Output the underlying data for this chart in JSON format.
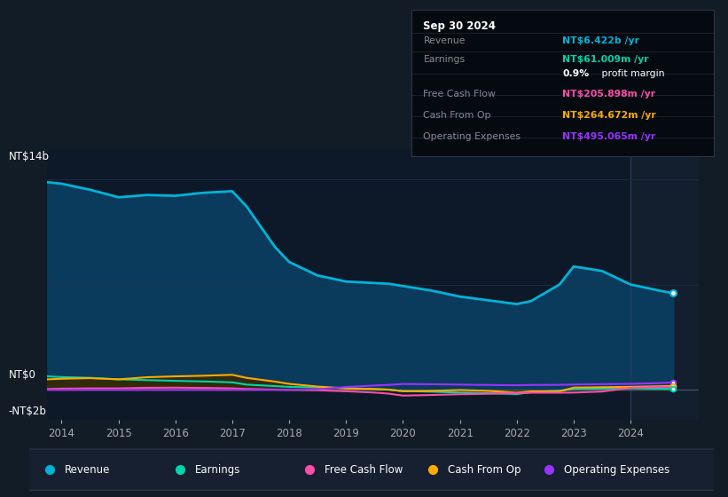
{
  "bg_color": "#111c27",
  "plot_bg_color": "#0d1929",
  "right_strip_color": "#131f2e",
  "grid_color": "#1e3048",
  "zero_line_color": "#4a5a6a",
  "colors": {
    "revenue": "#00b4d8",
    "revenue_fill": "#0a3a5c",
    "earnings": "#00d4aa",
    "earnings_fill": "#003d2e",
    "free_cash_flow": "#ff4da6",
    "cash_from_op": "#ffaa00",
    "cash_from_op_fill": "#3d2800",
    "operating_expenses": "#9933ff"
  },
  "legend": [
    {
      "label": "Revenue",
      "color": "#00b4d8"
    },
    {
      "label": "Earnings",
      "color": "#00d4aa"
    },
    {
      "label": "Free Cash Flow",
      "color": "#ff4da6"
    },
    {
      "label": "Cash From Op",
      "color": "#ffaa00"
    },
    {
      "label": "Operating Expenses",
      "color": "#9933ff"
    }
  ],
  "info_box_bg": "#040a10",
  "info_box_border": "#333344",
  "x_data": [
    2013.75,
    2014.0,
    2014.5,
    2015.0,
    2015.5,
    2016.0,
    2016.5,
    2017.0,
    2017.25,
    2017.75,
    2018.0,
    2018.5,
    2019.0,
    2019.5,
    2019.75,
    2020.0,
    2020.5,
    2021.0,
    2021.5,
    2022.0,
    2022.25,
    2022.75,
    2023.0,
    2023.5,
    2024.0,
    2024.5,
    2024.75
  ],
  "revenue": [
    13800,
    13700,
    13300,
    12800,
    12950,
    12900,
    13100,
    13200,
    12200,
    9500,
    8500,
    7600,
    7200,
    7100,
    7050,
    6900,
    6600,
    6200,
    5950,
    5700,
    5900,
    7000,
    8200,
    7900,
    7000,
    6600,
    6422
  ],
  "earnings": [
    900,
    850,
    800,
    700,
    650,
    600,
    560,
    500,
    350,
    250,
    200,
    160,
    100,
    50,
    10,
    -80,
    -120,
    -180,
    -220,
    -280,
    -150,
    -50,
    50,
    80,
    100,
    75,
    61
  ],
  "free_cash_flow": [
    60,
    80,
    100,
    100,
    140,
    150,
    130,
    100,
    60,
    20,
    0,
    -30,
    -90,
    -180,
    -250,
    -380,
    -340,
    -290,
    -260,
    -210,
    -190,
    -190,
    -180,
    -110,
    140,
    190,
    206
  ],
  "cash_from_op": [
    700,
    740,
    780,
    700,
    840,
    900,
    940,
    1000,
    800,
    550,
    400,
    220,
    100,
    60,
    20,
    -90,
    -70,
    -10,
    -70,
    -190,
    -100,
    -100,
    150,
    175,
    200,
    240,
    265
  ],
  "operating_expenses": [
    0,
    0,
    0,
    0,
    0,
    0,
    0,
    0,
    0,
    0,
    0,
    40,
    190,
    290,
    330,
    390,
    375,
    350,
    325,
    305,
    325,
    335,
    355,
    380,
    400,
    450,
    495
  ],
  "xlim": [
    2013.75,
    2025.2
  ],
  "ylim_bottom": -2000,
  "ylim_top": 16000,
  "divider_x": 2024.0
}
